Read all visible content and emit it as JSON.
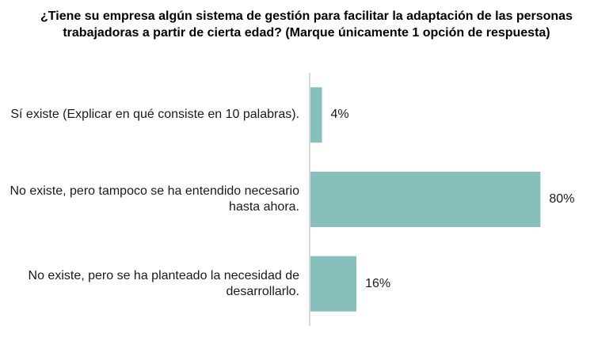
{
  "chart_data": {
    "type": "bar",
    "orientation": "horizontal",
    "title": "¿Tiene su empresa algún sistema de gestión para facilitar la adaptación de las personas trabajadoras a partir de cierta edad? (Marque únicamente 1 opción de respuesta)",
    "categories": [
      "Sí existe (Explicar en qué consiste en 10 palabras).",
      "No existe, pero tampoco se ha entendido necesario hasta ahora.",
      "No existe, pero se ha planteado la necesidad de desarrollarlo."
    ],
    "values": [
      4,
      80,
      16
    ],
    "data_labels": [
      "4%",
      "80%",
      "16%"
    ],
    "unit": "%",
    "xlim": [
      0,
      100
    ],
    "grid": false,
    "legend": "none",
    "bar_color": "#86bfbc",
    "axis_color": "#b0b0b0"
  }
}
